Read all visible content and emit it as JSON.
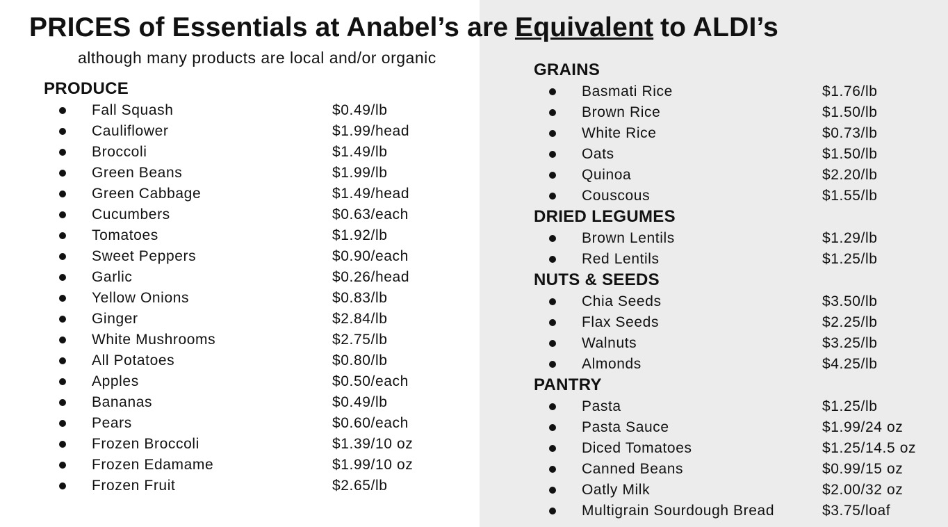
{
  "header": {
    "title_before": "PRICES of Essentials at Anabel’s are",
    "title_emphasis": "Equivalent",
    "title_after": "to ALDI’s",
    "subtitle": "although many products are local and/or organic"
  },
  "columns": [
    {
      "sections": [
        {
          "heading": "PRODUCE",
          "items": [
            {
              "name": "Fall Squash",
              "price": "$0.49/lb"
            },
            {
              "name": "Cauliflower",
              "price": "$1.99/head"
            },
            {
              "name": "Broccoli",
              "price": "$1.49/lb"
            },
            {
              "name": "Green Beans",
              "price": "$1.99/lb"
            },
            {
              "name": "Green Cabbage",
              "price": "$1.49/head"
            },
            {
              "name": "Cucumbers",
              "price": "$0.63/each"
            },
            {
              "name": "Tomatoes",
              "price": "$1.92/lb"
            },
            {
              "name": "Sweet Peppers",
              "price": "$0.90/each"
            },
            {
              "name": "Garlic",
              "price": "$0.26/head"
            },
            {
              "name": "Yellow Onions",
              "price": "$0.83/lb"
            },
            {
              "name": "Ginger",
              "price": "$2.84/lb"
            },
            {
              "name": "White Mushrooms",
              "price": "$2.75/lb"
            },
            {
              "name": "All Potatoes",
              "price": "$0.80/lb"
            },
            {
              "name": "Apples",
              "price": "$0.50/each"
            },
            {
              "name": "Bananas",
              "price": "$0.49/lb"
            },
            {
              "name": "Pears",
              "price": "$0.60/each"
            },
            {
              "name": "Frozen Broccoli",
              "price": "$1.39/10 oz"
            },
            {
              "name": "Frozen Edamame",
              "price": "$1.99/10 oz"
            },
            {
              "name": "Frozen Fruit",
              "price": "$2.65/lb"
            }
          ]
        }
      ]
    },
    {
      "sections": [
        {
          "heading": "GRAINS",
          "items": [
            {
              "name": "Basmati Rice",
              "price": "$1.76/lb"
            },
            {
              "name": "Brown Rice",
              "price": "$1.50/lb"
            },
            {
              "name": "White Rice",
              "price": "$0.73/lb"
            },
            {
              "name": "Oats",
              "price": "$1.50/lb"
            },
            {
              "name": "Quinoa",
              "price": "$2.20/lb"
            },
            {
              "name": "Couscous",
              "price": "$1.55/lb"
            }
          ]
        },
        {
          "heading": "DRIED LEGUMES",
          "items": [
            {
              "name": "Brown Lentils",
              "price": "$1.29/lb"
            },
            {
              "name": "Red Lentils",
              "price": "$1.25/lb"
            }
          ]
        },
        {
          "heading": "NUTS & SEEDS",
          "items": [
            {
              "name": "Chia Seeds",
              "price": "$3.50/lb"
            },
            {
              "name": "Flax Seeds",
              "price": "$2.25/lb"
            },
            {
              "name": "Walnuts",
              "price": "$3.25/lb"
            },
            {
              "name": "Almonds",
              "price": "$4.25/lb"
            }
          ]
        },
        {
          "heading": "PANTRY",
          "items": [
            {
              "name": "Pasta",
              "price": "$1.25/lb"
            },
            {
              "name": "Pasta Sauce",
              "price": "$1.99/24 oz"
            },
            {
              "name": "Diced Tomatoes",
              "price": "$1.25/14.5 oz"
            },
            {
              "name": "Canned Beans",
              "price": "$0.99/15 oz"
            },
            {
              "name": "Oatly Milk",
              "price": "$2.00/32 oz"
            },
            {
              "name": "Multigrain Sourdough Bread",
              "price": "$3.75/loaf"
            }
          ]
        }
      ]
    }
  ]
}
